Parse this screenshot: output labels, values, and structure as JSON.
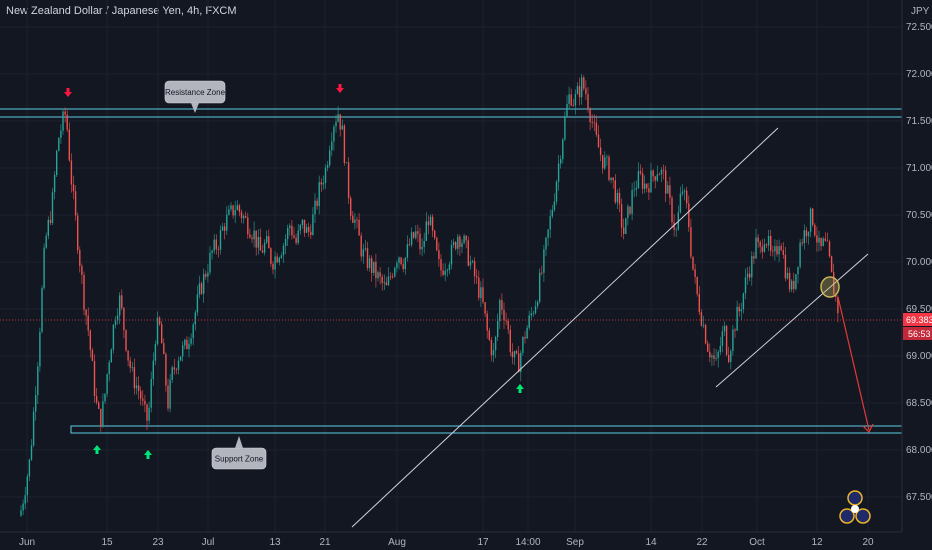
{
  "header": {
    "title": "New Zealand Dollar / Japanese Yen, 4h, FXCM"
  },
  "chart_data": {
    "type": "candlestick",
    "symbol": "New Zealand Dollar / Japanese Yen",
    "interval": "4h",
    "source": "FXCM",
    "currency_label": "JPY",
    "y_ticks": [
      "72.500",
      "72.000",
      "71.500",
      "71.000",
      "70.500",
      "70.000",
      "69.500",
      "69.000",
      "68.500",
      "68.000",
      "67.500"
    ],
    "ylim": [
      67.2,
      72.75
    ],
    "x_ticks": [
      "Jun",
      "15",
      "23",
      "Jul",
      "13",
      "21",
      "Aug",
      "17",
      "14:00",
      "Sep",
      "14",
      "22",
      "Oct",
      "12",
      "20"
    ],
    "price_tag": "69.383",
    "countdown_tag": "56:53",
    "resistance_zone": {
      "label": "Resistance Zone",
      "low": 71.53,
      "high": 71.62
    },
    "support_zone": {
      "label": "Support Zone",
      "low": 68.16,
      "high": 68.22
    },
    "path_points": [
      [
        20,
        67.3
      ],
      [
        30,
        67.9
      ],
      [
        38,
        69.0
      ],
      [
        45,
        70.2
      ],
      [
        52,
        70.6
      ],
      [
        58,
        71.3
      ],
      [
        63,
        71.5
      ],
      [
        66,
        71.6
      ],
      [
        68,
        71.3
      ],
      [
        72,
        70.8
      ],
      [
        76,
        70.4
      ],
      [
        80,
        70.0
      ],
      [
        84,
        69.6
      ],
      [
        88,
        69.3
      ],
      [
        92,
        68.9
      ],
      [
        96,
        68.5
      ],
      [
        100,
        68.3
      ],
      [
        104,
        68.5
      ],
      [
        108,
        68.9
      ],
      [
        112,
        69.2
      ],
      [
        116,
        69.5
      ],
      [
        120,
        69.6
      ],
      [
        124,
        69.3
      ],
      [
        128,
        69.0
      ],
      [
        132,
        68.8
      ],
      [
        136,
        68.7
      ],
      [
        140,
        68.6
      ],
      [
        144,
        68.4
      ],
      [
        148,
        68.3
      ],
      [
        152,
        68.8
      ],
      [
        156,
        69.3
      ],
      [
        160,
        69.3
      ],
      [
        164,
        68.9
      ],
      [
        168,
        68.5
      ],
      [
        172,
        68.8
      ],
      [
        178,
        69.0
      ],
      [
        186,
        69.1
      ],
      [
        194,
        69.4
      ],
      [
        200,
        69.7
      ],
      [
        206,
        69.9
      ],
      [
        212,
        70.1
      ],
      [
        218,
        70.2
      ],
      [
        224,
        70.4
      ],
      [
        230,
        70.5
      ],
      [
        236,
        70.6
      ],
      [
        242,
        70.5
      ],
      [
        248,
        70.4
      ],
      [
        254,
        70.3
      ],
      [
        260,
        70.1
      ],
      [
        266,
        70.2
      ],
      [
        272,
        70.0
      ],
      [
        278,
        70.1
      ],
      [
        284,
        70.2
      ],
      [
        290,
        70.4
      ],
      [
        296,
        70.2
      ],
      [
        302,
        70.4
      ],
      [
        308,
        70.3
      ],
      [
        314,
        70.5
      ],
      [
        320,
        70.8
      ],
      [
        326,
        71.0
      ],
      [
        330,
        71.3
      ],
      [
        334,
        71.5
      ],
      [
        338,
        71.6
      ],
      [
        342,
        71.4
      ],
      [
        346,
        71.0
      ],
      [
        350,
        70.6
      ],
      [
        356,
        70.4
      ],
      [
        362,
        70.1
      ],
      [
        368,
        70.0
      ],
      [
        374,
        69.9
      ],
      [
        380,
        69.8
      ],
      [
        386,
        69.7
      ],
      [
        392,
        69.9
      ],
      [
        398,
        70.1
      ],
      [
        404,
        70.0
      ],
      [
        410,
        70.2
      ],
      [
        416,
        70.3
      ],
      [
        422,
        70.1
      ],
      [
        428,
        70.5
      ],
      [
        434,
        70.2
      ],
      [
        440,
        69.9
      ],
      [
        446,
        70.0
      ],
      [
        452,
        70.1
      ],
      [
        458,
        70.3
      ],
      [
        464,
        70.2
      ],
      [
        470,
        70.0
      ],
      [
        476,
        69.8
      ],
      [
        482,
        69.6
      ],
      [
        488,
        69.2
      ],
      [
        494,
        69.0
      ],
      [
        500,
        69.6
      ],
      [
        506,
        69.4
      ],
      [
        512,
        69.0
      ],
      [
        518,
        68.9
      ],
      [
        524,
        69.2
      ],
      [
        530,
        69.4
      ],
      [
        536,
        69.6
      ],
      [
        542,
        69.9
      ],
      [
        548,
        70.3
      ],
      [
        554,
        70.7
      ],
      [
        558,
        71.0
      ],
      [
        562,
        71.3
      ],
      [
        566,
        71.6
      ],
      [
        570,
        71.8
      ],
      [
        574,
        71.7
      ],
      [
        578,
        71.8
      ],
      [
        582,
        71.9
      ],
      [
        586,
        71.8
      ],
      [
        590,
        71.6
      ],
      [
        596,
        71.3
      ],
      [
        602,
        71.1
      ],
      [
        608,
        71.0
      ],
      [
        614,
        70.8
      ],
      [
        620,
        70.5
      ],
      [
        624,
        70.3
      ],
      [
        628,
        70.5
      ],
      [
        634,
        70.8
      ],
      [
        640,
        70.9
      ],
      [
        646,
        70.8
      ],
      [
        652,
        70.9
      ],
      [
        658,
        71.0
      ],
      [
        664,
        70.9
      ],
      [
        670,
        70.6
      ],
      [
        676,
        70.3
      ],
      [
        682,
        70.8
      ],
      [
        688,
        70.5
      ],
      [
        692,
        70.0
      ],
      [
        696,
        69.7
      ],
      [
        700,
        69.5
      ],
      [
        704,
        69.3
      ],
      [
        708,
        69.1
      ],
      [
        712,
        69.0
      ],
      [
        716,
        68.9
      ],
      [
        720,
        69.1
      ],
      [
        724,
        69.3
      ],
      [
        728,
        69.0
      ],
      [
        732,
        69.2
      ],
      [
        736,
        69.4
      ],
      [
        740,
        69.5
      ],
      [
        744,
        69.7
      ],
      [
        748,
        69.9
      ],
      [
        752,
        70.0
      ],
      [
        756,
        70.2
      ],
      [
        760,
        70.1
      ],
      [
        764,
        70.3
      ],
      [
        768,
        70.2
      ],
      [
        772,
        70.0
      ],
      [
        776,
        70.1
      ],
      [
        780,
        70.3
      ],
      [
        784,
        70.0
      ],
      [
        788,
        69.8
      ],
      [
        792,
        69.7
      ],
      [
        796,
        69.9
      ],
      [
        800,
        70.2
      ],
      [
        804,
        70.3
      ],
      [
        808,
        70.4
      ],
      [
        812,
        70.5
      ],
      [
        816,
        70.3
      ],
      [
        820,
        70.1
      ],
      [
        824,
        70.2
      ],
      [
        828,
        70.1
      ],
      [
        832,
        69.8
      ],
      [
        836,
        69.6
      ],
      [
        840,
        69.4
      ]
    ]
  },
  "annotations": {
    "colors": {
      "zone": "#5ec8e5",
      "up_arrow": "#00e676",
      "down_arrow": "#ff1744",
      "target": "#e53935",
      "trend": "#d1d4dc",
      "circle": "#c9b458"
    },
    "up_arrows": [
      {
        "x_date": "Jun 12",
        "price": 68.0
      },
      {
        "x_date": "Jun 21",
        "price": 68.0
      },
      {
        "x_date": "Aug 19",
        "price": 68.78
      }
    ],
    "down_arrows": [
      {
        "x_date": "Jun 9",
        "price": 71.78
      },
      {
        "x_date": "Jul 24",
        "price": 71.8
      }
    ]
  }
}
